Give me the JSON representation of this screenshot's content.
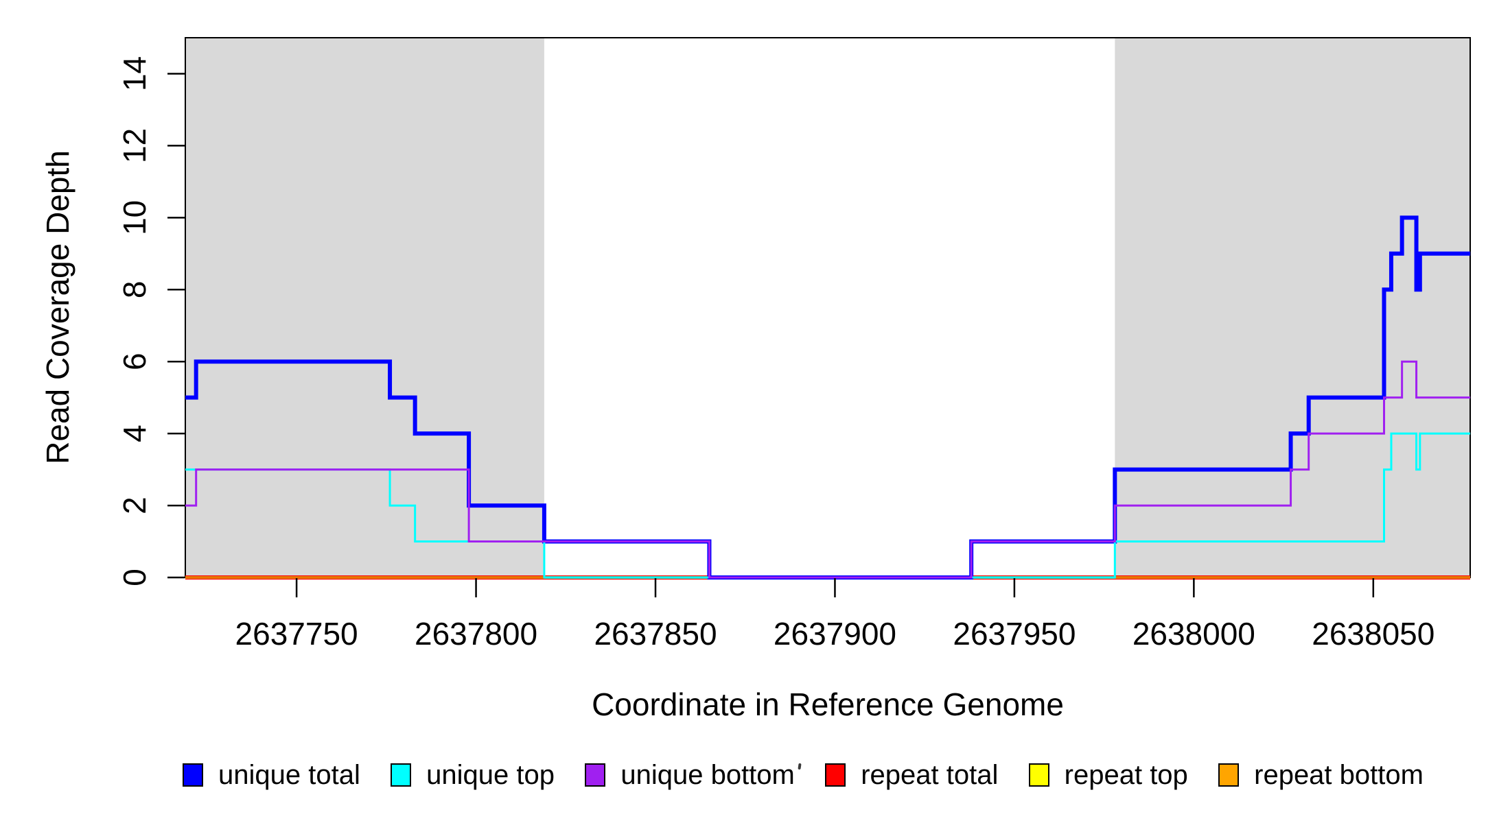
{
  "figure": {
    "background": "#ffffff",
    "plot_border_color": "#000000",
    "highlight_color": "#d9d9d9"
  },
  "chart_data": {
    "type": "line",
    "subtype": "step-coverage",
    "title": "",
    "xlabel": "Coordinate in Reference Genome",
    "ylabel": "Read Coverage Depth",
    "xlim": [
      2637719,
      2638077
    ],
    "ylim": [
      0,
      15
    ],
    "grid": "off",
    "legend_position": "bottom",
    "x_ticks": [
      2637750,
      2637800,
      2637850,
      2637900,
      2637950,
      2638000,
      2638050
    ],
    "x_tick_labels": [
      "2637750",
      "2637800",
      "2637850",
      "2637900",
      "2637950",
      "2638000",
      "2638050"
    ],
    "y_ticks": [
      0,
      2,
      4,
      6,
      8,
      10,
      12,
      14
    ],
    "y_tick_labels": [
      "0",
      "2",
      "4",
      "6",
      "8",
      "10",
      "12",
      "14"
    ],
    "highlight_regions": [
      {
        "start": 2637719,
        "end": 2637819
      },
      {
        "start": 2637978,
        "end": 2638077
      }
    ],
    "series": [
      {
        "name": "unique total",
        "color": "#0000FF",
        "line_width": 6,
        "steps": [
          [
            2637719,
            5
          ],
          [
            2637722,
            6
          ],
          [
            2637776,
            5
          ],
          [
            2637783,
            4
          ],
          [
            2637798,
            2
          ],
          [
            2637819,
            1
          ],
          [
            2637865,
            0
          ],
          [
            2637938,
            1
          ],
          [
            2637978,
            3
          ],
          [
            2638027,
            4
          ],
          [
            2638032,
            5
          ],
          [
            2638053,
            8
          ],
          [
            2638055,
            9
          ],
          [
            2638058,
            10
          ],
          [
            2638062,
            8
          ],
          [
            2638063,
            9
          ]
        ]
      },
      {
        "name": "unique top",
        "color": "#00FFFF",
        "line_width": 3,
        "steps": [
          [
            2637719,
            3
          ],
          [
            2637776,
            2
          ],
          [
            2637783,
            1
          ],
          [
            2637819,
            0
          ],
          [
            2637978,
            1
          ],
          [
            2638053,
            3
          ],
          [
            2638055,
            4
          ],
          [
            2638062,
            3
          ],
          [
            2638063,
            4
          ]
        ]
      },
      {
        "name": "unique bottom",
        "color": "#A020F0",
        "line_width": 3,
        "steps": [
          [
            2637719,
            2
          ],
          [
            2637722,
            3
          ],
          [
            2637798,
            1
          ],
          [
            2637865,
            0
          ],
          [
            2637938,
            1
          ],
          [
            2637978,
            2
          ],
          [
            2638027,
            3
          ],
          [
            2638032,
            4
          ],
          [
            2638053,
            5
          ],
          [
            2638058,
            6
          ],
          [
            2638062,
            5
          ]
        ]
      },
      {
        "name": "repeat total",
        "color": "#FF0000",
        "line_width": 6,
        "steps": [
          [
            2637719,
            0
          ]
        ]
      },
      {
        "name": "repeat top",
        "color": "#FFFF00",
        "line_width": 3,
        "steps": [
          [
            2637719,
            0
          ]
        ]
      },
      {
        "name": "repeat bottom",
        "color": "#FFA500",
        "line_width": 4,
        "steps": [
          [
            2637719,
            0
          ]
        ]
      }
    ],
    "baseline_artifact_colors": {
      "inside_highlight_regions": "#E87600",
      "between_highlight_regions": "#9CA25E"
    }
  },
  "legend": {
    "items": [
      {
        "label": "unique total",
        "color": "#0000FF"
      },
      {
        "label": "unique top",
        "color": "#00FFFF"
      },
      {
        "label": "unique bottom",
        "color": "#A020F0"
      },
      {
        "label": "repeat total",
        "color": "#FF0000"
      },
      {
        "label": "repeat top",
        "color": "#FFFF00"
      },
      {
        "label": "repeat bottom",
        "color": "#FFA500"
      }
    ]
  }
}
